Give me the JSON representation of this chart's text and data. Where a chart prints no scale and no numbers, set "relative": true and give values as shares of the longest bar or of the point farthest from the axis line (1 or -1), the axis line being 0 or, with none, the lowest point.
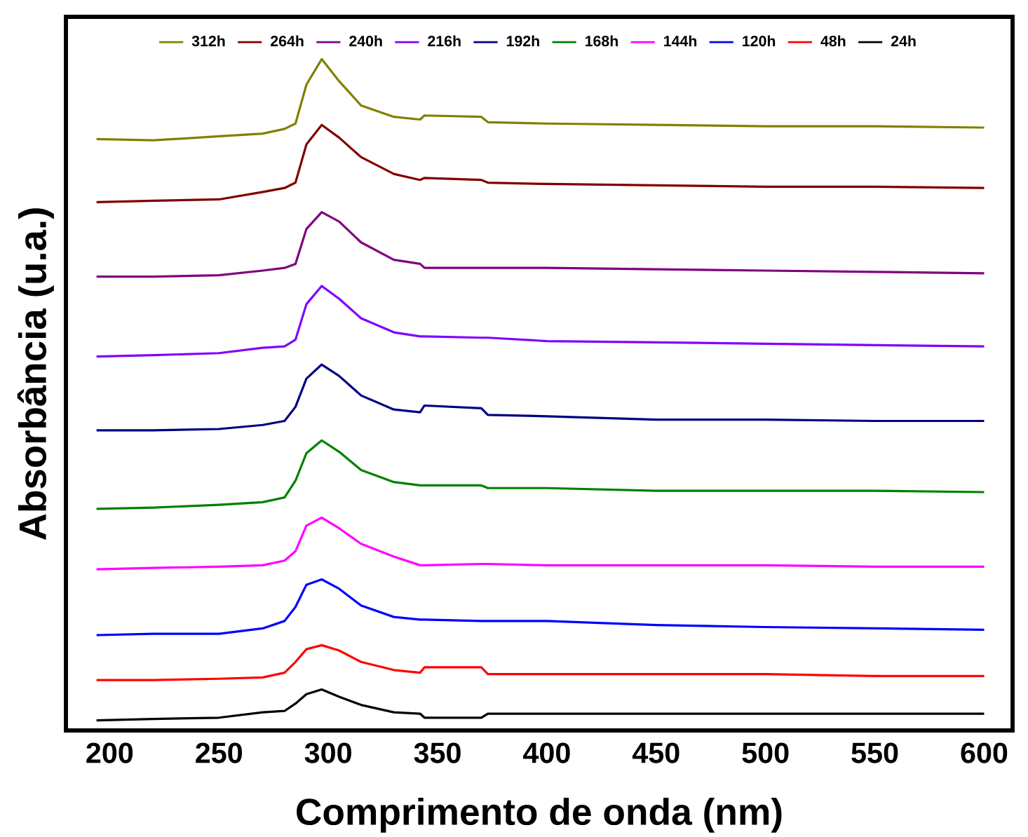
{
  "chart_data": {
    "type": "line",
    "relative": true,
    "xlabel": "Comprimento de onda (nm)",
    "ylabel": "Absorbância (u.a.)",
    "xlim": [
      180,
      613
    ],
    "xticks": [
      200,
      250,
      300,
      350,
      400,
      450,
      500,
      550,
      600
    ],
    "legend": "top",
    "grid": false,
    "x": [
      194,
      220,
      250,
      270,
      280,
      285,
      290,
      297,
      305,
      315,
      330,
      342,
      344,
      370,
      373,
      400,
      450,
      500,
      550,
      600
    ],
    "series": [
      {
        "name": "312h",
        "color": "#808000",
        "values": [
          0.881,
          0.879,
          0.885,
          0.889,
          0.896,
          0.904,
          0.962,
          1.0,
          0.967,
          0.931,
          0.914,
          0.91,
          0.916,
          0.914,
          0.906,
          0.904,
          0.902,
          0.9,
          0.9,
          0.898
        ]
      },
      {
        "name": "264h",
        "color": "#800000",
        "values": [
          0.787,
          0.789,
          0.791,
          0.802,
          0.808,
          0.816,
          0.873,
          0.902,
          0.883,
          0.854,
          0.829,
          0.82,
          0.823,
          0.82,
          0.816,
          0.814,
          0.812,
          0.81,
          0.81,
          0.808
        ]
      },
      {
        "name": "240h",
        "color": "#800080",
        "values": [
          0.676,
          0.676,
          0.678,
          0.685,
          0.689,
          0.695,
          0.747,
          0.772,
          0.758,
          0.727,
          0.701,
          0.695,
          0.689,
          0.689,
          0.689,
          0.689,
          0.687,
          0.685,
          0.683,
          0.681
        ]
      },
      {
        "name": "216h",
        "color": "#8000ff",
        "values": [
          0.557,
          0.559,
          0.562,
          0.57,
          0.572,
          0.582,
          0.635,
          0.662,
          0.643,
          0.614,
          0.593,
          0.587,
          0.587,
          0.585,
          0.585,
          0.58,
          0.578,
          0.576,
          0.574,
          0.572
        ]
      },
      {
        "name": "192h",
        "color": "#000080",
        "values": [
          0.447,
          0.447,
          0.449,
          0.455,
          0.461,
          0.482,
          0.524,
          0.545,
          0.528,
          0.499,
          0.478,
          0.474,
          0.484,
          0.48,
          0.47,
          0.468,
          0.463,
          0.463,
          0.461,
          0.461
        ]
      },
      {
        "name": "168h",
        "color": "#008000",
        "values": [
          0.33,
          0.332,
          0.336,
          0.34,
          0.347,
          0.372,
          0.413,
          0.432,
          0.415,
          0.388,
          0.37,
          0.365,
          0.365,
          0.365,
          0.361,
          0.361,
          0.357,
          0.357,
          0.357,
          0.355
        ]
      },
      {
        "name": "144h",
        "color": "#ff00ff",
        "values": [
          0.24,
          0.242,
          0.244,
          0.246,
          0.253,
          0.267,
          0.305,
          0.317,
          0.301,
          0.278,
          0.259,
          0.246,
          0.246,
          0.248,
          0.248,
          0.246,
          0.246,
          0.246,
          0.244,
          0.244
        ]
      },
      {
        "name": "120h",
        "color": "#0000ff",
        "values": [
          0.142,
          0.144,
          0.144,
          0.152,
          0.163,
          0.184,
          0.217,
          0.225,
          0.211,
          0.186,
          0.169,
          0.165,
          0.165,
          0.163,
          0.163,
          0.163,
          0.157,
          0.154,
          0.152,
          0.15
        ]
      },
      {
        "name": "48h",
        "color": "#ff0000",
        "values": [
          0.075,
          0.075,
          0.077,
          0.079,
          0.086,
          0.102,
          0.121,
          0.127,
          0.119,
          0.102,
          0.09,
          0.086,
          0.094,
          0.094,
          0.084,
          0.084,
          0.084,
          0.084,
          0.081,
          0.081
        ]
      },
      {
        "name": "24h",
        "color": "#000000",
        "values": [
          0.015,
          0.017,
          0.019,
          0.027,
          0.029,
          0.04,
          0.054,
          0.061,
          0.05,
          0.038,
          0.027,
          0.025,
          0.019,
          0.019,
          0.025,
          0.025,
          0.025,
          0.025,
          0.025,
          0.025
        ]
      }
    ]
  }
}
